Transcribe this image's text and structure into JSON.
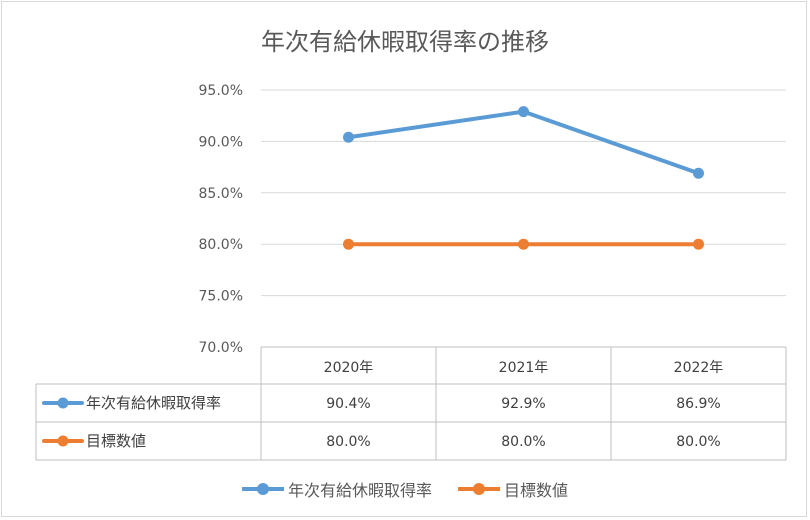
{
  "chart_data": {
    "type": "line",
    "title": "年次有給休暇取得率の推移",
    "categories": [
      "2020年",
      "2021年",
      "2022年"
    ],
    "ylim": [
      0.7,
      0.95
    ],
    "yticks": [
      "95.0%",
      "90.0%",
      "85.0%",
      "80.0%",
      "75.0%",
      "70.0%"
    ],
    "grid": true,
    "legend_position": "bottom",
    "data_table": true,
    "series": [
      {
        "name": "年次有給休暇取得率",
        "values": [
          0.904,
          0.929,
          0.869
        ],
        "labels": [
          "90.4%",
          "92.9%",
          "86.9%"
        ],
        "color": "#5b9bd5"
      },
      {
        "name": "目標数値",
        "values": [
          0.8,
          0.8,
          0.8
        ],
        "labels": [
          "80.0%",
          "80.0%",
          "80.0%"
        ],
        "color": "#ed7d31"
      }
    ]
  }
}
